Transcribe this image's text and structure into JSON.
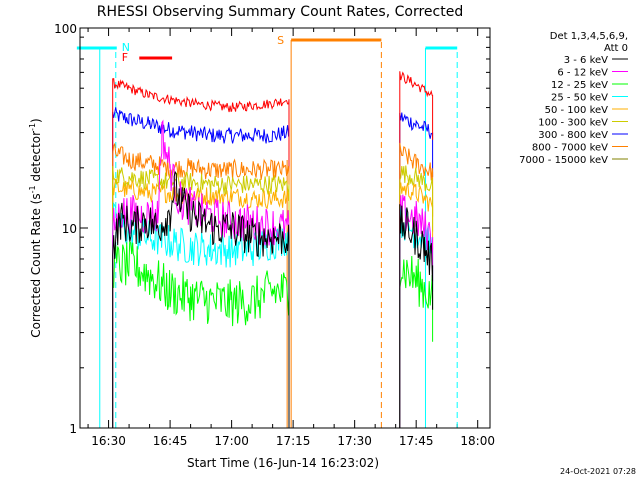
{
  "chart_data": {
    "type": "line",
    "title": "RHESSI Observing Summary Count Rates, Corrected",
    "xlabel": "Start Time (16-Jun-14 16:23:02)",
    "ylabel_main": "Corrected Count Rate (s",
    "ylabel_sup1": "-1",
    "ylabel_mid": " detector",
    "ylabel_sup2": "-1",
    "ylabel_end": ")",
    "yscale": "log",
    "ylim": [
      1,
      100
    ],
    "xlim": [
      "16:23:02",
      "18:03:00"
    ],
    "x_ticks": [
      "16:30",
      "16:45",
      "17:00",
      "17:15",
      "17:30",
      "17:45",
      "18:00"
    ],
    "y_ticks": [
      "1",
      "10",
      "100"
    ],
    "legend_header": [
      "Det 1,3,4,5,6,9,",
      "Att 0"
    ],
    "legend_position": "right",
    "timestamp": "24-Oct-2021 07:28",
    "series": [
      {
        "name": "3 - 6 keV",
        "color": "#000000",
        "segments": [
          [
            [
              "16:31",
              8
            ],
            [
              "16:33",
              11
            ],
            [
              "16:36",
              10
            ],
            [
              "16:39",
              11
            ],
            [
              "16:42",
              10
            ],
            [
              "16:45",
              12
            ],
            [
              "16:46",
              16
            ],
            [
              "16:48",
              13
            ],
            [
              "16:52",
              11
            ],
            [
              "16:56",
              10
            ],
            [
              "17:00",
              10
            ],
            [
              "17:05",
              9
            ],
            [
              "17:10",
              9
            ],
            [
              "17:14",
              9
            ]
          ],
          [
            [
              "17:41",
              10.5
            ],
            [
              "17:43",
              10
            ],
            [
              "17:45",
              9
            ],
            [
              "17:47",
              8
            ],
            [
              "17:49",
              6.5
            ]
          ]
        ]
      },
      {
        "name": "6 - 12 keV",
        "color": "#ff00ff",
        "segments": [
          [
            [
              "16:31",
              10
            ],
            [
              "16:33",
              12
            ],
            [
              "16:38",
              11.5
            ],
            [
              "16:42",
              11.5
            ],
            [
              "16:43",
              30
            ],
            [
              "16:45",
              20
            ],
            [
              "16:47",
              14
            ],
            [
              "16:52",
              12
            ],
            [
              "16:58",
              11
            ],
            [
              "17:05",
              10.5
            ],
            [
              "17:14",
              10
            ]
          ],
          [
            [
              "17:41",
              12
            ],
            [
              "17:45",
              11
            ],
            [
              "17:49",
              9
            ]
          ]
        ]
      },
      {
        "name": "12 - 25 keV",
        "color": "#00ff00",
        "segments": [
          [
            [
              "16:31",
              6.5
            ],
            [
              "16:36",
              6.5
            ],
            [
              "16:40",
              5.8
            ],
            [
              "16:45",
              4.8
            ],
            [
              "16:50",
              4.5
            ],
            [
              "16:55",
              4.3
            ],
            [
              "17:00",
              4.2
            ],
            [
              "17:05",
              4.3
            ],
            [
              "17:10",
              4.8
            ],
            [
              "17:14",
              4.8
            ]
          ],
          [
            [
              "17:41",
              6.5
            ],
            [
              "17:45",
              5.5
            ],
            [
              "17:49",
              4.5
            ]
          ]
        ]
      },
      {
        "name": "25 - 50 keV",
        "color": "#00ffff",
        "segments": [
          [
            [
              "16:31",
              11
            ],
            [
              "16:35",
              9.5
            ],
            [
              "16:40",
              9
            ],
            [
              "16:45",
              8.5
            ],
            [
              "16:50",
              8
            ],
            [
              "16:55",
              7.8
            ],
            [
              "17:00",
              7.8
            ],
            [
              "17:05",
              7.8
            ],
            [
              "17:10",
              8.5
            ],
            [
              "17:14",
              9
            ]
          ],
          [
            [
              "17:41",
              11
            ],
            [
              "17:45",
              9.5
            ],
            [
              "17:49",
              8
            ]
          ]
        ]
      },
      {
        "name": "50 - 100 keV",
        "color": "#ffaf00",
        "segments": [
          [
            [
              "16:31",
              16
            ],
            [
              "16:35",
              15.5
            ],
            [
              "16:40",
              15
            ],
            [
              "16:45",
              15
            ],
            [
              "16:50",
              14.5
            ],
            [
              "16:55",
              14.5
            ],
            [
              "17:00",
              14.5
            ],
            [
              "17:05",
              14
            ],
            [
              "17:10",
              14
            ],
            [
              "17:14",
              14
            ]
          ],
          [
            [
              "17:41",
              16
            ],
            [
              "17:45",
              15
            ],
            [
              "17:49",
              13
            ]
          ]
        ]
      },
      {
        "name": "100 - 300 keV",
        "color": "#cccc00",
        "segments": [
          [
            [
              "16:31",
              18.5
            ],
            [
              "16:35",
              18
            ],
            [
              "16:40",
              17.5
            ],
            [
              "16:45",
              17
            ],
            [
              "16:50",
              17
            ],
            [
              "16:55",
              16.5
            ],
            [
              "17:00",
              16.5
            ],
            [
              "17:05",
              16.5
            ],
            [
              "17:10",
              16.5
            ],
            [
              "17:14",
              16.5
            ]
          ],
          [
            [
              "17:41",
              19
            ],
            [
              "17:45",
              18
            ],
            [
              "17:49",
              16
            ]
          ]
        ]
      },
      {
        "name": "300 - 800 keV",
        "color": "#0000ff",
        "segments": [
          [
            [
              "16:31",
              37
            ],
            [
              "16:35",
              35
            ],
            [
              "16:40",
              33
            ],
            [
              "16:45",
              31
            ],
            [
              "16:50",
              30
            ],
            [
              "16:55",
              29
            ],
            [
              "17:00",
              29
            ],
            [
              "17:05",
              29
            ],
            [
              "17:10",
              29
            ],
            [
              "17:14",
              30
            ]
          ],
          [
            [
              "17:41",
              36
            ],
            [
              "17:45",
              33
            ],
            [
              "17:49",
              30
            ]
          ]
        ]
      },
      {
        "name": "800 - 7000 keV",
        "color": "#ff8000",
        "segments": [
          [
            [
              "16:31",
              24
            ],
            [
              "16:35",
              22
            ],
            [
              "16:40",
              21
            ],
            [
              "16:45",
              20
            ],
            [
              "16:50",
              20
            ],
            [
              "16:55",
              19.5
            ],
            [
              "17:00",
              19.5
            ],
            [
              "17:05",
              19.5
            ],
            [
              "17:10",
              19.5
            ],
            [
              "17:14",
              19.5
            ]
          ],
          [
            [
              "17:41",
              24
            ],
            [
              "17:45",
              21
            ],
            [
              "17:49",
              19
            ]
          ]
        ]
      },
      {
        "name": "7000 - 15000 keV",
        "color": "#808000",
        "segments": []
      },
      {
        "name": "",
        "color": "#ff0000",
        "segments": [
          [
            [
              "16:31",
              53
            ],
            [
              "16:35",
              50
            ],
            [
              "16:40",
              46
            ],
            [
              "16:45",
              44
            ],
            [
              "16:50",
              42
            ],
            [
              "16:55",
              41
            ],
            [
              "17:00",
              40
            ],
            [
              "17:05",
              41
            ],
            [
              "17:10",
              42
            ],
            [
              "17:14",
              44
            ]
          ],
          [
            [
              "17:41",
              58
            ],
            [
              "17:45",
              52
            ],
            [
              "17:49",
              46
            ]
          ]
        ]
      }
    ],
    "annotations": {
      "saa_start": "17:15",
      "saa_end": "17:37",
      "night_intervals": [
        [
          "16:23",
          "16:32"
        ],
        [
          "17:48",
          "17:55"
        ]
      ],
      "label_N": "N",
      "label_F": "F",
      "label_S": "S",
      "flare_bar": [
        "16:37",
        "16:45"
      ]
    }
  }
}
